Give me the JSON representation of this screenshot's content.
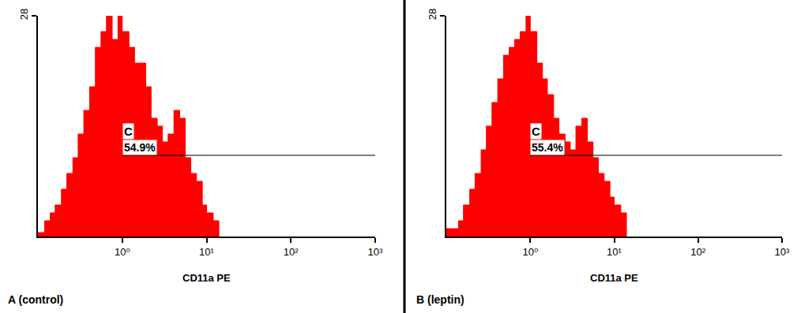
{
  "chart_data": [
    {
      "type": "area",
      "title": "A (control)",
      "x_label": "CD11a PE",
      "color": "#ff0000",
      "log": "x",
      "x": [
        0.1,
        0.12,
        0.14,
        0.16,
        0.19,
        0.22,
        0.26,
        0.3,
        0.35,
        0.41,
        0.48,
        0.56,
        0.65,
        0.76,
        0.89,
        1.0,
        1.2,
        1.4,
        1.6,
        1.9,
        2.2,
        2.6,
        3.0,
        3.5,
        4.1,
        4.8,
        5.6,
        6.5,
        7.6,
        8.9,
        10,
        12,
        14
      ],
      "values": [
        0.5,
        2,
        3,
        4,
        6,
        8,
        10,
        13,
        16,
        19,
        24,
        26,
        28,
        25,
        28,
        26,
        24,
        22,
        22,
        19,
        15,
        14,
        12,
        13,
        16,
        15,
        10,
        8,
        7,
        4,
        3,
        2,
        0
      ],
      "xlim": [
        0.1,
        1000
      ],
      "xticks": [
        {
          "value": 1,
          "label": "10⁰"
        },
        {
          "value": 10,
          "label": "10¹"
        },
        {
          "value": 100,
          "label": "10²"
        },
        {
          "value": 1000,
          "label": "10³"
        }
      ],
      "ylim": [
        0,
        28
      ],
      "yticks": [
        28
      ],
      "gate": {
        "label": "C",
        "text": "54.9%",
        "xlim": [
          1,
          1000
        ],
        "y": 10.3
      }
    },
    {
      "type": "area",
      "title": "B (leptin)",
      "x_label": "CD11a PE",
      "color": "#ff0000",
      "log": "x",
      "x": [
        0.1,
        0.12,
        0.14,
        0.16,
        0.19,
        0.22,
        0.26,
        0.3,
        0.35,
        0.41,
        0.48,
        0.56,
        0.65,
        0.76,
        0.89,
        1.0,
        1.2,
        1.4,
        1.6,
        1.9,
        2.2,
        2.6,
        3.0,
        3.5,
        4.1,
        4.8,
        5.6,
        6.5,
        7.6,
        8.9,
        10,
        12,
        14
      ],
      "values": [
        1,
        1,
        2,
        4,
        6,
        8,
        11,
        14,
        17,
        20,
        23,
        24,
        25,
        26,
        28,
        26,
        22,
        20,
        18,
        15,
        13,
        12,
        11,
        14,
        15,
        12,
        10,
        8,
        7,
        5,
        4,
        3,
        0
      ],
      "xlim": [
        0.1,
        1000
      ],
      "xticks": [
        {
          "value": 1,
          "label": "10⁰"
        },
        {
          "value": 10,
          "label": "10¹"
        },
        {
          "value": 100,
          "label": "10²"
        },
        {
          "value": 1000,
          "label": "10³"
        }
      ],
      "ylim": [
        0,
        28
      ],
      "yticks": [
        28
      ],
      "gate": {
        "label": "C",
        "text": "55.4%",
        "xlim": [
          1,
          1000
        ],
        "y": 10.3
      }
    }
  ]
}
